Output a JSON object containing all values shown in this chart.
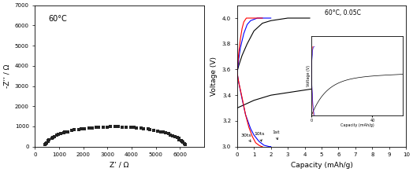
{
  "left_title": "60°C",
  "left_xlabel": "Z’ / Ω",
  "left_ylabel": "-Z’’ / Ω",
  "left_xlim": [
    0,
    7000
  ],
  "left_ylim": [
    0,
    7000
  ],
  "right_title": "60°C, 0.05C",
  "right_xlabel": "Capacity (mAh/g)",
  "right_ylabel": "Voltage (V)",
  "right_xlim": [
    0,
    10
  ],
  "right_ylim": [
    3.0,
    4.1
  ],
  "dot_color": "#222222"
}
